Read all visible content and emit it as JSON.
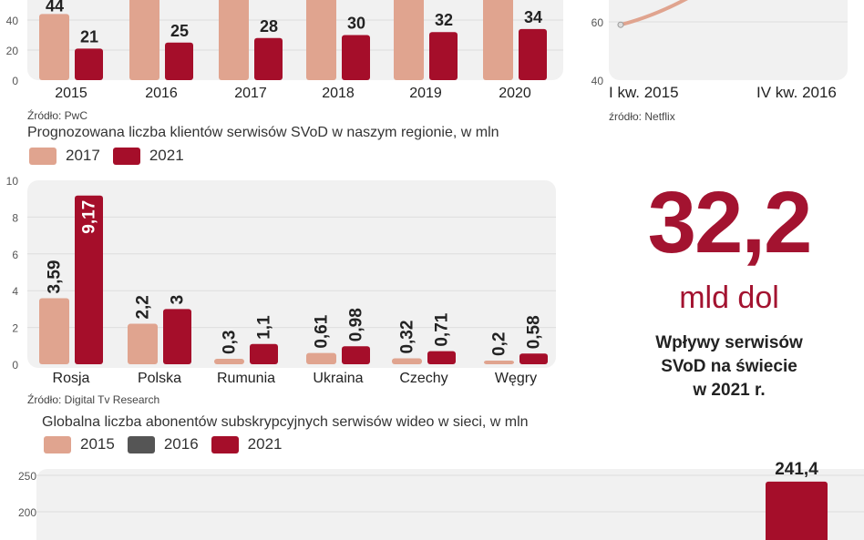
{
  "colors": {
    "light": "#e0a48f",
    "dark": "#a50e2a",
    "gray": "#555555",
    "accent": "#a31330",
    "plot_bg": "#f1f1f1"
  },
  "chart_data": [
    {
      "type": "bar",
      "categories": [
        "2015",
        "2016",
        "2017",
        "2018",
        "2019",
        "2020"
      ],
      "series": [
        {
          "values": [
            44,
            null,
            null,
            null,
            null,
            null
          ]
        },
        {
          "values": [
            21,
            25,
            28,
            30,
            32,
            34
          ]
        }
      ],
      "yticks": [
        0,
        20,
        40
      ],
      "source": "Źródło: PwC"
    },
    {
      "type": "line",
      "categories": [
        "I kw. 2015",
        "IV kw. 2016"
      ],
      "yticks": [
        40,
        60
      ],
      "first_point_value": 59,
      "source": "źródło: Netflix"
    },
    {
      "type": "bar",
      "title": "Prognozowana liczba klientów serwisów SVoD w naszym regionie, w mln",
      "categories": [
        "Rosja",
        "Polska",
        "Rumunia",
        "Ukraina",
        "Czechy",
        "Węgry"
      ],
      "series": [
        {
          "name": "2017",
          "values": [
            3.59,
            2.2,
            0.3,
            0.61,
            0.32,
            0.2
          ],
          "labels": [
            "3,59",
            "2,2",
            "0,3",
            "0,61",
            "0,32",
            "0,2"
          ]
        },
        {
          "name": "2021",
          "values": [
            9.17,
            3,
            1.1,
            0.98,
            0.71,
            0.58
          ],
          "labels": [
            "9,17",
            "3",
            "1,1",
            "0,98",
            "0,71",
            "0,58"
          ]
        }
      ],
      "yticks": [
        0,
        2,
        4,
        6,
        8,
        10
      ],
      "ylim": [
        0,
        10
      ],
      "source": "Źródło: Digital Tv Research"
    },
    {
      "type": "bar",
      "title": "Globalna liczba abonentów subskrypcyjnych serwisów wideo w sieci, w mln",
      "legend": [
        "2015",
        "2016",
        "2021"
      ],
      "series": [
        {
          "name": "2021",
          "values": [
            241.4
          ],
          "labels": [
            "241,4"
          ]
        }
      ],
      "yticks": [
        200,
        250
      ]
    }
  ],
  "highlight": {
    "value": "32,2",
    "unit": "mld dol",
    "description": [
      "Wpływy serwisów",
      "SVoD na świecie",
      "w 2021 r."
    ]
  }
}
